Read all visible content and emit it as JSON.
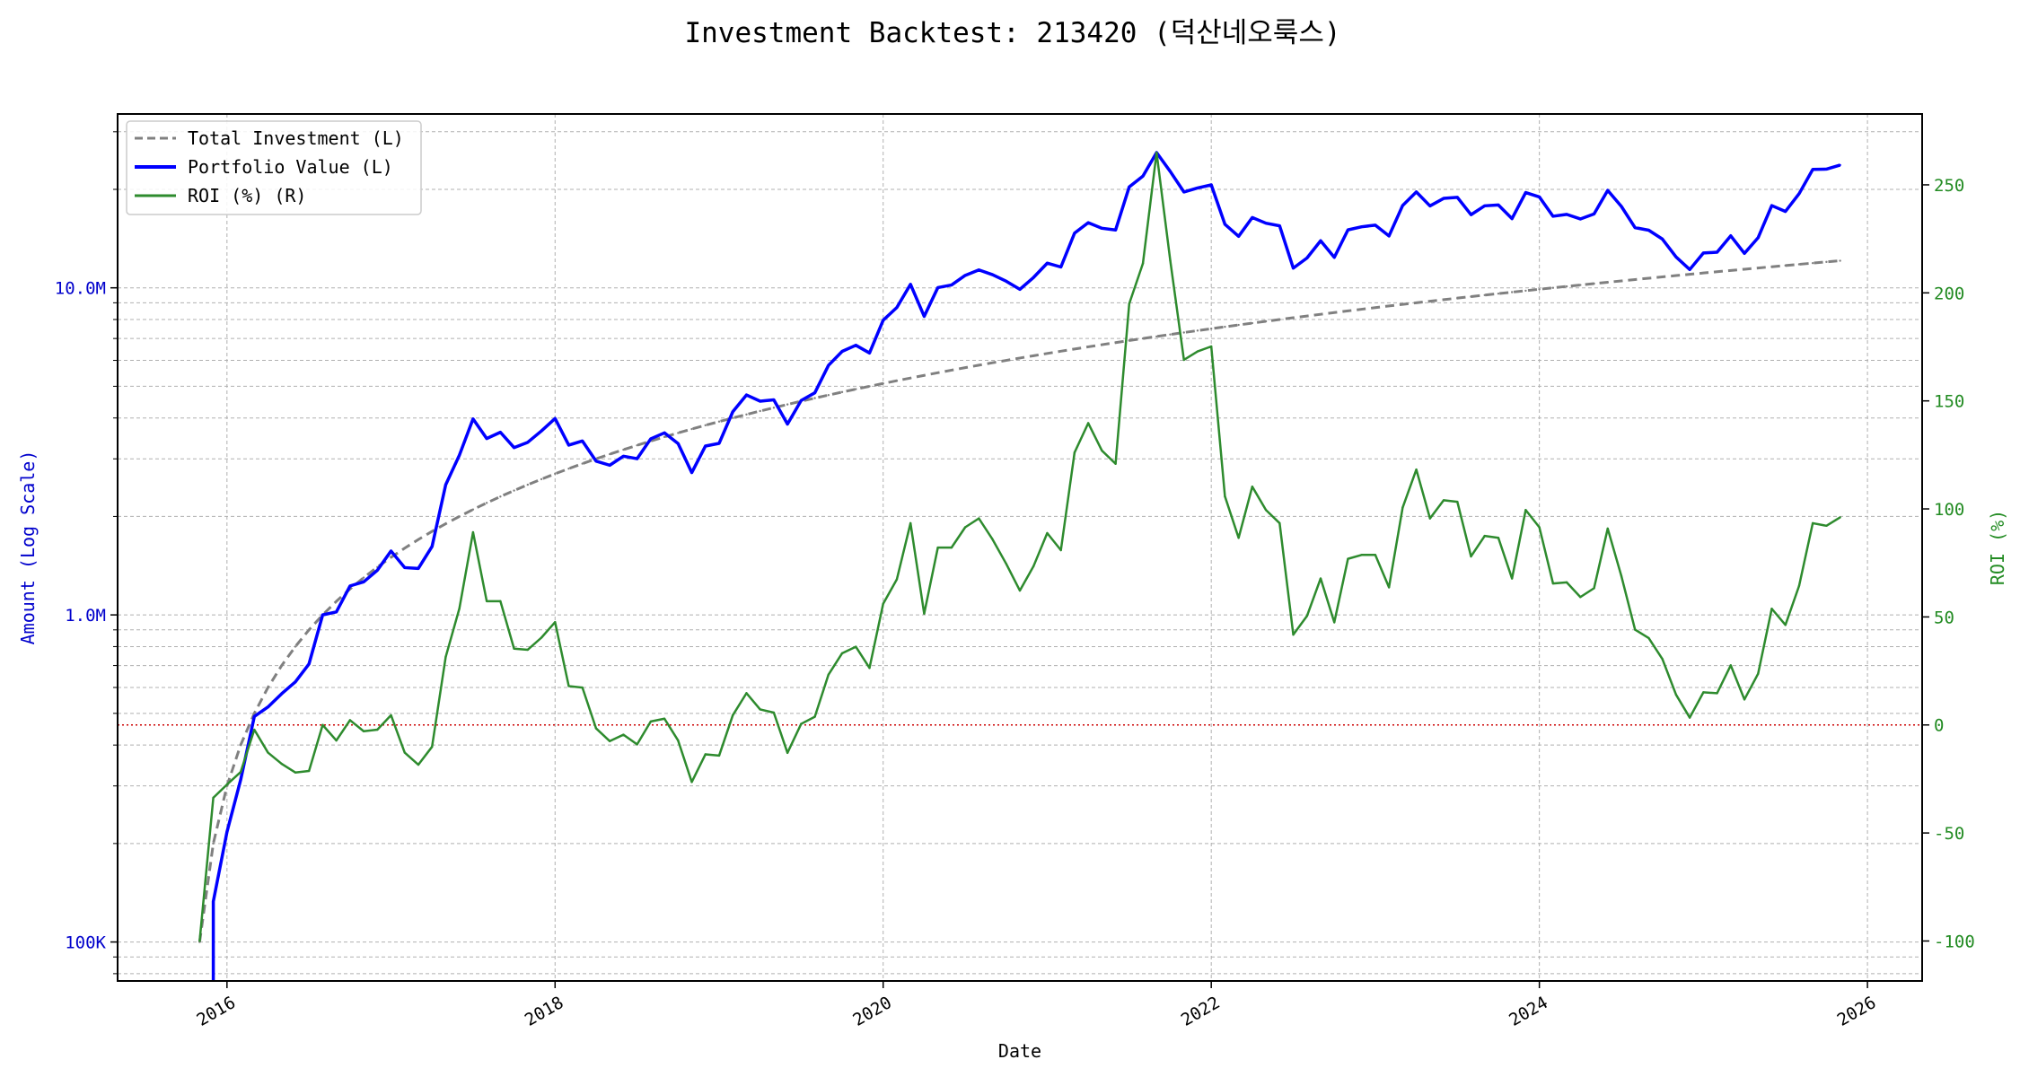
{
  "chart_data": {
    "type": "line",
    "title": "Investment Backtest: 213420 (덕산네오룩스)",
    "xlabel": "Date",
    "ylabel_left": "Amount (Log Scale)",
    "ylabel_right": "ROI (%)",
    "y_left_scale": "log",
    "y_left_range": [
      76000,
      34000000
    ],
    "y_left_ticks": [
      100000,
      1000000,
      10000000
    ],
    "y_left_tick_labels": [
      "100K",
      "1.0M",
      "10.0M"
    ],
    "y_right_range": [
      -118.5,
      282.8
    ],
    "y_right_ticks": [
      -100,
      -50,
      0,
      50,
      100,
      150,
      200,
      250
    ],
    "y_right_tick_labels": [
      "-100",
      "-50",
      "0",
      "50",
      "100",
      "150",
      "200",
      "250"
    ],
    "x_range": [
      "2015-05",
      "2026-05"
    ],
    "x_ticks": [
      2016,
      2018,
      2020,
      2022,
      2024,
      2026
    ],
    "x_tick_labels": [
      "2016",
      "2018",
      "2020",
      "2022",
      "2024",
      "2026"
    ],
    "grid": true,
    "legend_position": "top-left",
    "reference_line": {
      "axis": "right",
      "value": 0,
      "color": "#cc0000",
      "style": "dotted"
    },
    "colors": {
      "total_investment": "#808080",
      "portfolio_value": "#0000ff",
      "roi": "#2e8b2e",
      "left_axis": "#0000cc",
      "right_axis": "#228b22"
    },
    "dates": [
      "2015-11",
      "2015-12",
      "2016-01",
      "2016-02",
      "2016-03",
      "2016-04",
      "2016-05",
      "2016-06",
      "2016-07",
      "2016-08",
      "2016-09",
      "2016-10",
      "2016-11",
      "2016-12",
      "2017-01",
      "2017-02",
      "2017-03",
      "2017-04",
      "2017-05",
      "2017-06",
      "2017-07",
      "2017-08",
      "2017-09",
      "2017-10",
      "2017-11",
      "2017-12",
      "2018-01",
      "2018-02",
      "2018-03",
      "2018-04",
      "2018-05",
      "2018-06",
      "2018-07",
      "2018-08",
      "2018-09",
      "2018-10",
      "2018-11",
      "2018-12",
      "2019-01",
      "2019-02",
      "2019-03",
      "2019-04",
      "2019-05",
      "2019-06",
      "2019-07",
      "2019-08",
      "2019-09",
      "2019-10",
      "2019-11",
      "2019-12",
      "2020-01",
      "2020-02",
      "2020-03",
      "2020-04",
      "2020-05",
      "2020-06",
      "2020-07",
      "2020-08",
      "2020-09",
      "2020-10",
      "2020-11",
      "2020-12",
      "2021-01",
      "2021-02",
      "2021-03",
      "2021-04",
      "2021-05",
      "2021-06",
      "2021-07",
      "2021-08",
      "2021-09",
      "2021-10",
      "2021-11",
      "2021-12",
      "2022-01",
      "2022-02",
      "2022-03",
      "2022-04",
      "2022-05",
      "2022-06",
      "2022-07",
      "2022-08",
      "2022-09",
      "2022-10",
      "2022-11",
      "2022-12",
      "2023-01",
      "2023-02",
      "2023-03",
      "2023-04",
      "2023-05",
      "2023-06",
      "2023-07",
      "2023-08",
      "2023-09",
      "2023-10",
      "2023-11",
      "2023-12",
      "2024-01",
      "2024-02",
      "2024-03",
      "2024-04",
      "2024-05",
      "2024-06",
      "2024-07",
      "2024-08",
      "2024-09",
      "2024-10",
      "2024-11",
      "2024-12",
      "2025-01",
      "2025-02",
      "2025-03",
      "2025-04",
      "2025-05",
      "2025-06",
      "2025-07",
      "2025-08",
      "2025-09",
      "2025-10",
      "2025-11"
    ],
    "series": [
      {
        "name": "Total Investment (L)",
        "axis": "left",
        "style": "dashed",
        "values": [
          100000,
          200000,
          300000,
          400000,
          500000,
          600000,
          700000,
          800000,
          900000,
          1000000,
          1100000,
          1200000,
          1300000,
          1400000,
          1500000,
          1600000,
          1700000,
          1800000,
          1900000,
          2000000,
          2100000,
          2200000,
          2300000,
          2400000,
          2500000,
          2600000,
          2700000,
          2800000,
          2900000,
          3000000,
          3100000,
          3200000,
          3300000,
          3400000,
          3500000,
          3600000,
          3700000,
          3800000,
          3900000,
          4000000,
          4100000,
          4200000,
          4300000,
          4400000,
          4500000,
          4600000,
          4700000,
          4800000,
          4900000,
          5000000,
          5100000,
          5200000,
          5300000,
          5400000,
          5500000,
          5600000,
          5700000,
          5800000,
          5900000,
          6000000,
          6100000,
          6200000,
          6300000,
          6400000,
          6500000,
          6600000,
          6700000,
          6800000,
          6900000,
          7000000,
          7100000,
          7200000,
          7300000,
          7400000,
          7500000,
          7600000,
          7700000,
          7800000,
          7900000,
          8000000,
          8100000,
          8200000,
          8300000,
          8400000,
          8500000,
          8600000,
          8700000,
          8800000,
          8900000,
          9000000,
          9100000,
          9200000,
          9300000,
          9400000,
          9500000,
          9600000,
          9700000,
          9800000,
          9900000,
          10000000,
          10100000,
          10200000,
          10300000,
          10400000,
          10500000,
          10600000,
          10700000,
          10800000,
          10900000,
          11000000,
          11100000,
          11200000,
          11300000,
          11400000,
          11500000,
          11600000,
          11700000,
          11800000,
          11900000,
          12000000,
          12100000
        ]
      },
      {
        "name": "Portfolio Value (L)",
        "axis": "left",
        "style": "solid",
        "values": [
          0,
          133000,
          217000,
          313000,
          489000,
          523000,
          574000,
          624000,
          708000,
          1000000,
          1021000,
          1226000,
          1262000,
          1369000,
          1568000,
          1395000,
          1387000,
          1618000,
          2499000,
          3078000,
          3973000,
          3461000,
          3618000,
          3247000,
          3370000,
          3650000,
          3985000,
          3304000,
          3402000,
          2952000,
          2868000,
          3056000,
          3003000,
          3454000,
          3602000,
          3341000,
          2723000,
          3283000,
          3346000,
          4180000,
          4703000,
          4502000,
          4545000,
          3832000,
          4523000,
          4775000,
          5795000,
          6394000,
          6674000,
          6320000,
          7961000,
          8705000,
          10250000,
          8181000,
          10016000,
          10198000,
          10916000,
          11345000,
          10968000,
          10476000,
          9894000,
          10757000,
          11894000,
          11578000,
          14697000,
          15820000,
          15209000,
          15021000,
          20355000,
          21952000,
          25908000,
          22680000,
          19637000,
          20195000,
          20640000,
          15641000,
          14368000,
          16403000,
          15761000,
          15472000,
          11486000,
          12333000,
          13927000,
          12390000,
          15037000,
          15368000,
          15547000,
          14406000,
          17853000,
          19638000,
          17800000,
          18768000,
          18907000,
          16732000,
          17813000,
          17914000,
          16277000,
          19551000,
          18959000,
          16550000,
          16766000,
          16238000,
          16820000,
          19854000,
          17735000,
          15275000,
          15001000,
          14094000,
          12426000,
          11374000,
          12776000,
          12846000,
          14419000,
          12745000,
          14226000,
          17841000,
          17117000,
          19399000,
          23015000,
          23064000,
          23730000
        ]
      },
      {
        "name": "ROI (%) (R)",
        "axis": "right",
        "style": "solid",
        "values": [
          -100,
          -33.7,
          -27.6,
          -21.8,
          -2.2,
          -12.8,
          -18,
          -22,
          -21.3,
          0,
          -7.2,
          2.2,
          -2.9,
          -2.2,
          4.5,
          -12.8,
          -18.4,
          -10.1,
          31.5,
          53.9,
          89.2,
          57.3,
          57.3,
          35.3,
          34.8,
          40.4,
          47.6,
          18,
          17.3,
          -1.6,
          -7.5,
          -4.5,
          -9,
          1.6,
          2.9,
          -7.2,
          -26.4,
          -13.6,
          -14.2,
          4.5,
          14.7,
          7.2,
          5.7,
          -12.9,
          0.5,
          3.8,
          23.3,
          33.2,
          36.2,
          26.4,
          56.1,
          67.4,
          93.4,
          51.5,
          82.1,
          82.1,
          91.5,
          95.6,
          85.9,
          74.6,
          62.2,
          73.5,
          88.8,
          80.9,
          126.1,
          139.7,
          127,
          120.9,
          195,
          213.6,
          264.9,
          215,
          169,
          172.9,
          175.2,
          105.8,
          86.6,
          110.3,
          99.5,
          93.4,
          41.8,
          50.4,
          67.8,
          47.5,
          76.9,
          78.7,
          78.7,
          63.7,
          100.6,
          118.2,
          95.6,
          104,
          103.3,
          78,
          87.5,
          86.6,
          67.8,
          99.5,
          91.5,
          65.5,
          66,
          59.2,
          63.3,
          90.9,
          68.9,
          44.1,
          40.2,
          30.5,
          14,
          3.4,
          15.1,
          14.7,
          27.6,
          11.8,
          23.7,
          53.8,
          46.3,
          64.4,
          93.4,
          92.2,
          96.1
        ]
      }
    ]
  }
}
